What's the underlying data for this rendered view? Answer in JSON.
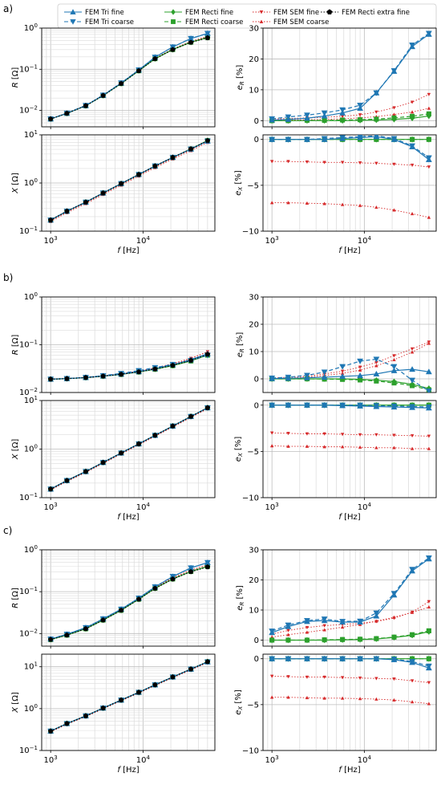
{
  "legend": {
    "placement": "top-center",
    "entries": [
      {
        "key": "tri_fine",
        "label": "FEM Tri fine",
        "color": "#1f77b4",
        "marker": "triangle-up",
        "line": "solid"
      },
      {
        "key": "tri_coarse",
        "label": "FEM Tri coarse",
        "color": "#1f77b4",
        "marker": "triangle-down",
        "line": "dashed"
      },
      {
        "key": "rect_fine",
        "label": "FEM Recti fine",
        "color": "#2ca02c",
        "marker": "diamond",
        "line": "solid"
      },
      {
        "key": "rect_coarse",
        "label": "FEM Recti coarse",
        "color": "#2ca02c",
        "marker": "square",
        "line": "dashed"
      },
      {
        "key": "sem_fine",
        "label": "FEM SEM fine",
        "color": "#d62728",
        "marker": "tri-down-small",
        "line": "dotted"
      },
      {
        "key": "sem_coarse",
        "label": "FEM SEM coarse",
        "color": "#d62728",
        "marker": "tri-up-small",
        "line": "dotted"
      },
      {
        "key": "extra_fine",
        "label": "FEM Recti extra fine",
        "color": "#000000",
        "marker": "pentagon",
        "line": "dotted"
      }
    ]
  },
  "panels": [
    {
      "label": "a)"
    },
    {
      "label": "b)"
    },
    {
      "label": "c)"
    }
  ],
  "axis_text": {
    "xlabel": "f  [Hz]",
    "R_ylabel": "R [Ω]",
    "X_ylabel": "X [Ω]",
    "eR_ylabel": "e_R [%]",
    "eX_ylabel": "e_X [%]",
    "log_xticks": [
      "10^3",
      "10^4"
    ],
    "eR_ticks": [
      "0",
      "10",
      "20",
      "30"
    ],
    "eX_ticks": [
      "0",
      "−5",
      "−10"
    ]
  },
  "chart_data": {
    "type": "line",
    "x_scale": "log",
    "x": [
      1000,
      1500,
      2400,
      3700,
      5800,
      9000,
      13500,
      21000,
      33000,
      50000
    ],
    "panels": [
      {
        "label": "a)",
        "R": {
          "yscale": "log",
          "ylim": [
            0.004,
            1
          ],
          "ref": [
            0.0062,
            0.0085,
            0.013,
            0.023,
            0.045,
            0.092,
            0.18,
            0.3,
            0.45,
            0.58
          ],
          "tri_factor": 0.28
        },
        "X": {
          "yscale": "log",
          "ylim": [
            0.1,
            10
          ],
          "ref": [
            0.17,
            0.26,
            0.4,
            0.62,
            0.97,
            1.5,
            2.25,
            3.4,
            5.1,
            7.6
          ]
        },
        "eR": {
          "ylim": [
            -2,
            30
          ],
          "series": {
            "tri_fine": [
              0.2,
              0.4,
              0.8,
              1.5,
              2.5,
              4.0,
              9.0,
              16.0,
              24.0,
              28.0
            ],
            "tri_coarse": [
              0.6,
              1.2,
              1.8,
              2.5,
              3.5,
              5.0,
              9.0,
              16.2,
              24.5,
              28.3
            ],
            "rect_fine": [
              0.0,
              0.0,
              0.0,
              0.0,
              0.0,
              0.1,
              0.2,
              0.4,
              0.8,
              1.5
            ],
            "rect_coarse": [
              0.0,
              0.0,
              0.1,
              0.1,
              0.2,
              0.3,
              0.5,
              0.9,
              1.4,
              2.2
            ],
            "sem_fine": [
              0.5,
              0.7,
              0.9,
              1.1,
              1.4,
              1.9,
              2.8,
              4.2,
              6.0,
              8.5
            ],
            "sem_coarse": [
              0.1,
              0.2,
              0.3,
              0.4,
              0.6,
              0.9,
              1.3,
              2.0,
              2.8,
              4.0
            ]
          }
        },
        "eX": {
          "ylim": [
            -10,
            0.5
          ],
          "series": {
            "tri_fine": [
              0.0,
              0.0,
              0.0,
              0.0,
              0.1,
              0.2,
              0.3,
              0.0,
              -0.8,
              -2.2
            ],
            "tri_coarse": [
              0.0,
              0.0,
              0.0,
              0.1,
              0.2,
              0.3,
              0.4,
              0.1,
              -0.7,
              -2.0
            ],
            "rect_fine": [
              0.0,
              0.0,
              0.0,
              0.0,
              0.0,
              0.0,
              0.0,
              0.0,
              0.0,
              0.0
            ],
            "rect_coarse": [
              0.0,
              0.0,
              0.0,
              0.0,
              0.0,
              0.0,
              0.0,
              0.0,
              0.0,
              0.0
            ],
            "sem_fine": [
              -2.4,
              -2.4,
              -2.45,
              -2.5,
              -2.5,
              -2.55,
              -2.6,
              -2.7,
              -2.8,
              -3.0
            ],
            "sem_coarse": [
              -6.9,
              -6.9,
              -6.95,
              -7.0,
              -7.1,
              -7.2,
              -7.4,
              -7.7,
              -8.1,
              -8.5
            ]
          }
        }
      },
      {
        "label": "b)",
        "R": {
          "yscale": "log",
          "ylim": [
            0.01,
            1
          ],
          "ref": [
            0.019,
            0.0195,
            0.0205,
            0.022,
            0.024,
            0.027,
            0.031,
            0.037,
            0.047,
            0.063
          ],
          "tri_factor": 0.1
        },
        "X": {
          "yscale": "log",
          "ylim": [
            0.1,
            10
          ],
          "ref": [
            0.15,
            0.225,
            0.345,
            0.53,
            0.83,
            1.28,
            1.92,
            2.98,
            4.7,
            7.1
          ]
        },
        "eR": {
          "ylim": [
            -5,
            30
          ],
          "series": {
            "tri_fine": [
              0.1,
              0.2,
              0.4,
              0.6,
              0.9,
              1.2,
              1.8,
              3.0,
              3.5,
              2.6
            ],
            "tri_coarse": [
              0.3,
              0.6,
              1.3,
              2.5,
              4.5,
              6.5,
              7.2,
              4.5,
              -0.5,
              -4.5
            ],
            "rect_fine": [
              0.0,
              0.0,
              0.0,
              0.0,
              0.0,
              -0.2,
              -0.5,
              -1.0,
              -2.0,
              -3.5
            ],
            "rect_coarse": [
              0.0,
              0.0,
              0.0,
              -0.1,
              -0.2,
              -0.4,
              -0.8,
              -1.5,
              -2.5,
              -4.0
            ],
            "sem_fine": [
              0.3,
              0.6,
              1.0,
              1.8,
              2.8,
              4.3,
              6.0,
              8.5,
              11.0,
              13.5
            ],
            "sem_coarse": [
              0.1,
              0.3,
              0.6,
              1.2,
              2.0,
              3.2,
              4.8,
              7.0,
              9.8,
              13.0
            ]
          }
        },
        "eX": {
          "ylim": [
            -10,
            0.5
          ],
          "series": {
            "tri_fine": [
              0.0,
              0.0,
              0.0,
              0.0,
              -0.05,
              -0.1,
              -0.15,
              -0.2,
              -0.25,
              -0.3
            ],
            "tri_coarse": [
              0.0,
              0.0,
              0.0,
              0.0,
              0.0,
              0.0,
              -0.05,
              -0.1,
              -0.15,
              -0.2
            ],
            "rect_fine": [
              0.0,
              0.0,
              0.0,
              0.0,
              0.0,
              0.0,
              0.0,
              0.0,
              0.0,
              0.0
            ],
            "rect_coarse": [
              0.0,
              0.0,
              0.0,
              0.0,
              0.0,
              0.0,
              0.0,
              0.0,
              0.0,
              0.0
            ],
            "sem_fine": [
              -3.0,
              -3.05,
              -3.1,
              -3.1,
              -3.15,
              -3.2,
              -3.2,
              -3.25,
              -3.3,
              -3.35
            ],
            "sem_coarse": [
              -4.4,
              -4.45,
              -4.45,
              -4.5,
              -4.5,
              -4.55,
              -4.6,
              -4.6,
              -4.7,
              -4.7
            ]
          }
        }
      },
      {
        "label": "c)",
        "R": {
          "yscale": "log",
          "ylim": [
            0.005,
            1
          ],
          "ref": [
            0.0072,
            0.0092,
            0.013,
            0.021,
            0.036,
            0.066,
            0.12,
            0.2,
            0.3,
            0.39
          ],
          "tri_factor": 0.26
        },
        "X": {
          "yscale": "log",
          "ylim": [
            0.1,
            20
          ],
          "ref": [
            0.29,
            0.44,
            0.67,
            1.03,
            1.6,
            2.45,
            3.7,
            5.7,
            8.8,
            13.2
          ]
        },
        "eR": {
          "ylim": [
            -2,
            30
          ],
          "series": {
            "tri_fine": [
              2.5,
              4.5,
              6.2,
              6.5,
              6.0,
              6.0,
              8.0,
              15.0,
              23.0,
              27.0
            ],
            "tri_coarse": [
              3.0,
              5.0,
              6.5,
              7.0,
              6.2,
              6.3,
              9.0,
              15.5,
              23.5,
              27.3
            ],
            "rect_fine": [
              0.0,
              0.0,
              0.0,
              0.0,
              0.1,
              0.2,
              0.4,
              0.9,
              1.6,
              2.8
            ],
            "rect_coarse": [
              0.0,
              0.0,
              0.0,
              0.1,
              0.2,
              0.3,
              0.5,
              1.0,
              1.8,
              3.1
            ],
            "sem_fine": [
              2.0,
              3.2,
              4.2,
              4.8,
              5.2,
              5.6,
              6.2,
              7.3,
              9.3,
              12.8
            ],
            "sem_coarse": [
              1.0,
              1.8,
              2.6,
              3.4,
              4.3,
              5.2,
              6.3,
              7.6,
              9.2,
              11.0
            ]
          }
        },
        "eX": {
          "ylim": [
            -10,
            0.5
          ],
          "series": {
            "tri_fine": [
              0.0,
              0.0,
              0.0,
              0.0,
              0.0,
              0.0,
              0.0,
              -0.1,
              -0.4,
              -1.0
            ],
            "tri_coarse": [
              0.0,
              0.0,
              0.0,
              0.0,
              0.0,
              0.0,
              0.0,
              -0.05,
              -0.3,
              -0.8
            ],
            "rect_fine": [
              0.0,
              0.0,
              0.0,
              0.0,
              0.0,
              0.0,
              0.0,
              0.0,
              0.0,
              0.0
            ],
            "rect_coarse": [
              0.0,
              0.0,
              0.0,
              0.0,
              0.0,
              0.0,
              0.0,
              0.0,
              0.0,
              0.0
            ],
            "sem_fine": [
              -1.9,
              -1.95,
              -2.0,
              -2.0,
              -2.05,
              -2.1,
              -2.15,
              -2.2,
              -2.4,
              -2.6
            ],
            "sem_coarse": [
              -4.2,
              -4.2,
              -4.25,
              -4.3,
              -4.3,
              -4.35,
              -4.4,
              -4.5,
              -4.7,
              -4.9
            ]
          }
        }
      }
    ]
  }
}
